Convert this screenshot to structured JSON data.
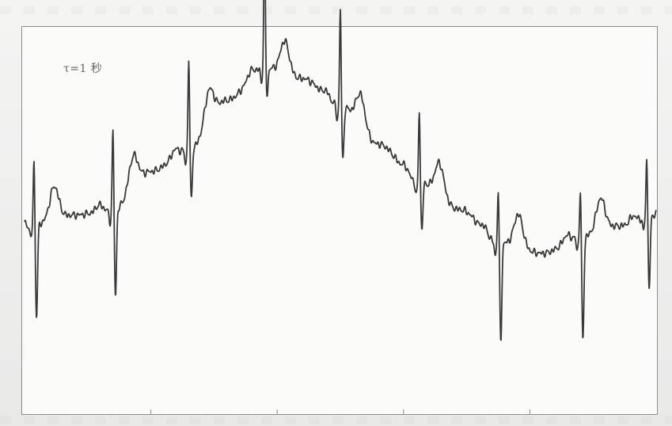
{
  "chart_data": {
    "type": "line",
    "annotation": "τ=1 秒",
    "title": "",
    "xlabel": "",
    "ylabel": "",
    "xlim": [
      0,
      10
    ],
    "ylim": [
      -3.5,
      3.5
    ],
    "x_ticks": [
      2,
      4,
      6,
      8
    ],
    "grid": false,
    "legend": "none",
    "line_color": "#3a3a3a",
    "series": [
      {
        "beats_at": [
          0.15,
          1.4,
          2.6,
          3.8,
          5.0,
          6.25,
          7.5,
          8.8,
          9.85
        ],
        "r_peak_amplitude": [
          1.2,
          1.5,
          1.7,
          2.4,
          1.8,
          1.35,
          1.0,
          0.9,
          1.1
        ],
        "s_trough_amplitude": [
          -1.7,
          -1.6,
          -0.9,
          -0.5,
          -1.0,
          -0.9,
          -1.8,
          -1.9,
          -1.3
        ],
        "baseline_drift": [
          [
            0.0,
            -0.1
          ],
          [
            0.8,
            0.1
          ],
          [
            1.4,
            0.2
          ],
          [
            2.0,
            0.9
          ],
          [
            2.6,
            1.3
          ],
          [
            3.2,
            2.2
          ],
          [
            3.8,
            2.8
          ],
          [
            4.4,
            2.6
          ],
          [
            5.0,
            2.1
          ],
          [
            5.6,
            1.4
          ],
          [
            6.25,
            0.7
          ],
          [
            6.9,
            0.2
          ],
          [
            7.5,
            -0.4
          ],
          [
            8.2,
            -0.6
          ],
          [
            8.8,
            -0.3
          ],
          [
            9.4,
            -0.1
          ],
          [
            10.0,
            0.1
          ]
        ]
      }
    ]
  }
}
